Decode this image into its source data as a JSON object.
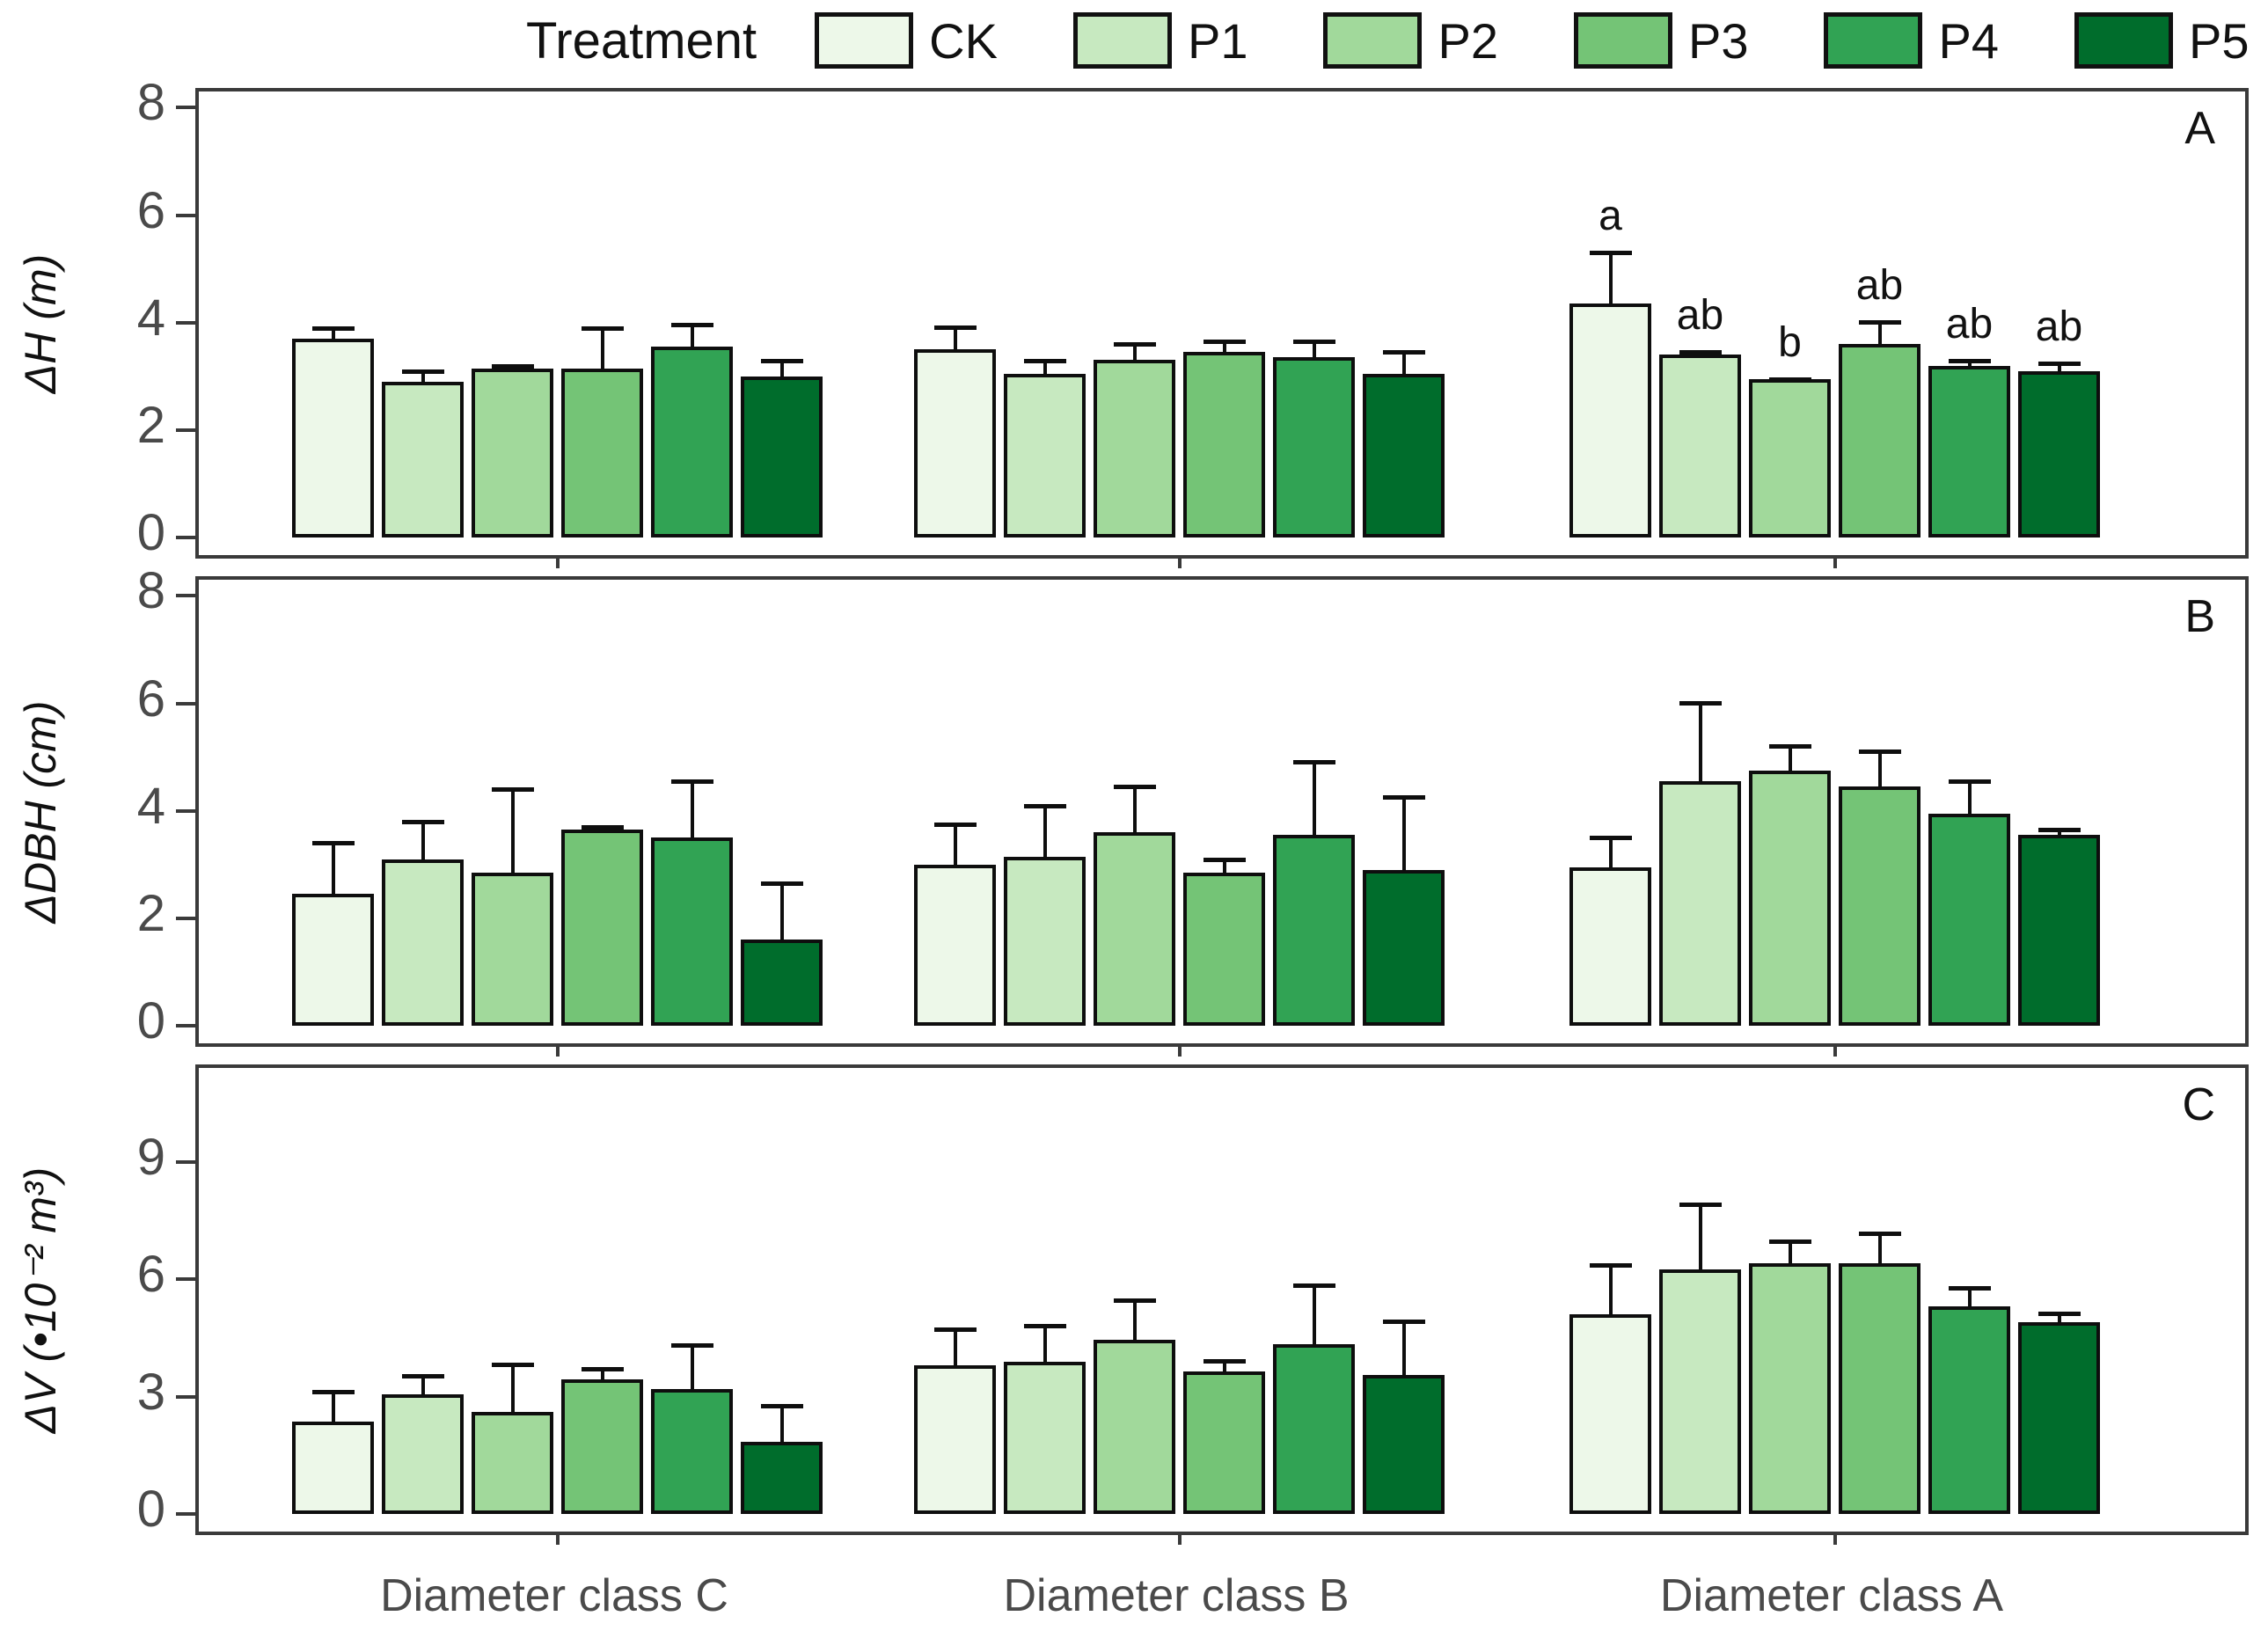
{
  "legend": {
    "title": "Treatment",
    "items": [
      {
        "label": "CK",
        "color": "#edf8e9"
      },
      {
        "label": "P1",
        "color": "#c7e9c0"
      },
      {
        "label": "P2",
        "color": "#a1d99b"
      },
      {
        "label": "P3",
        "color": "#74c476"
      },
      {
        "label": "P4",
        "color": "#31a354"
      },
      {
        "label": "P5",
        "color": "#006d2c"
      }
    ]
  },
  "x_categories": [
    "Diameter class C",
    "Diameter class B",
    "Diameter class A"
  ],
  "chart_data": [
    {
      "type": "bar",
      "panel_label": "A",
      "ylabel": "ΔH (m)",
      "yticks": [
        0,
        2,
        4,
        6,
        8
      ],
      "ylim": [
        0,
        8.3
      ],
      "grid": false,
      "error_bars": "upper only, black caps",
      "categories": [
        "Diameter class C",
        "Diameter class B",
        "Diameter class A"
      ],
      "series": [
        {
          "name": "CK",
          "values": [
            3.7,
            3.5,
            4.35
          ],
          "errors": [
            0.3,
            0.5,
            1.05
          ]
        },
        {
          "name": "P1",
          "values": [
            2.9,
            3.05,
            3.4
          ],
          "errors": [
            0.3,
            0.35,
            0.15
          ]
        },
        {
          "name": "P2",
          "values": [
            3.15,
            3.3,
            2.95
          ],
          "errors": [
            0.15,
            0.4,
            0.1
          ]
        },
        {
          "name": "P3",
          "values": [
            3.15,
            3.45,
            3.6
          ],
          "errors": [
            0.85,
            0.3,
            0.5
          ]
        },
        {
          "name": "P4",
          "values": [
            3.55,
            3.35,
            3.2
          ],
          "errors": [
            0.5,
            0.4,
            0.2
          ]
        },
        {
          "name": "P5",
          "values": [
            3.0,
            3.05,
            3.1
          ],
          "errors": [
            0.4,
            0.5,
            0.25
          ]
        }
      ],
      "sig_letters": [
        null,
        null,
        [
          "a",
          "ab",
          "b",
          "ab",
          "ab",
          "ab"
        ]
      ]
    },
    {
      "type": "bar",
      "panel_label": "B",
      "ylabel": "ΔDBH (cm)",
      "yticks": [
        0,
        2,
        4,
        6,
        8
      ],
      "ylim": [
        0,
        8.3
      ],
      "grid": false,
      "error_bars": "upper only, black caps",
      "categories": [
        "Diameter class C",
        "Diameter class B",
        "Diameter class A"
      ],
      "series": [
        {
          "name": "CK",
          "values": [
            2.45,
            3.0,
            2.95
          ],
          "errors": [
            1.05,
            0.85,
            0.65
          ]
        },
        {
          "name": "P1",
          "values": [
            3.1,
            3.15,
            4.55
          ],
          "errors": [
            0.8,
            1.05,
            1.55
          ]
        },
        {
          "name": "P2",
          "values": [
            2.85,
            3.6,
            4.75
          ],
          "errors": [
            1.65,
            0.95,
            0.55
          ]
        },
        {
          "name": "P3",
          "values": [
            3.65,
            2.85,
            4.45
          ],
          "errors": [
            0.15,
            0.35,
            0.75
          ]
        },
        {
          "name": "P4",
          "values": [
            3.5,
            3.55,
            3.95
          ],
          "errors": [
            1.15,
            1.45,
            0.7
          ]
        },
        {
          "name": "P5",
          "values": [
            1.6,
            2.9,
            3.55
          ],
          "errors": [
            1.15,
            1.45,
            0.2
          ]
        }
      ],
      "sig_letters": [
        null,
        null,
        null
      ]
    },
    {
      "type": "bar",
      "panel_label": "C",
      "ylabel": "ΔV (•10⁻² m³)",
      "yticks": [
        0,
        3,
        6,
        9
      ],
      "ylim": [
        0,
        11.4
      ],
      "grid": false,
      "error_bars": "upper only, black caps",
      "categories": [
        "Diameter class C",
        "Diameter class B",
        "Diameter class A"
      ],
      "series": [
        {
          "name": "CK",
          "values": [
            2.35,
            3.8,
            5.1
          ],
          "errors": [
            0.9,
            1.05,
            1.4
          ]
        },
        {
          "name": "P1",
          "values": [
            3.05,
            3.9,
            6.25
          ],
          "errors": [
            0.6,
            1.05,
            1.8
          ]
        },
        {
          "name": "P2",
          "values": [
            2.6,
            4.45,
            6.4
          ],
          "errors": [
            1.35,
            1.15,
            0.7
          ]
        },
        {
          "name": "P3",
          "values": [
            3.45,
            3.65,
            6.4
          ],
          "errors": [
            0.4,
            0.4,
            0.9
          ]
        },
        {
          "name": "P4",
          "values": [
            3.2,
            4.35,
            5.3
          ],
          "errors": [
            1.25,
            1.65,
            0.6
          ]
        },
        {
          "name": "P5",
          "values": [
            1.85,
            3.55,
            4.9
          ],
          "errors": [
            1.05,
            1.5,
            0.35
          ]
        }
      ],
      "sig_letters": [
        null,
        null,
        null
      ]
    }
  ]
}
